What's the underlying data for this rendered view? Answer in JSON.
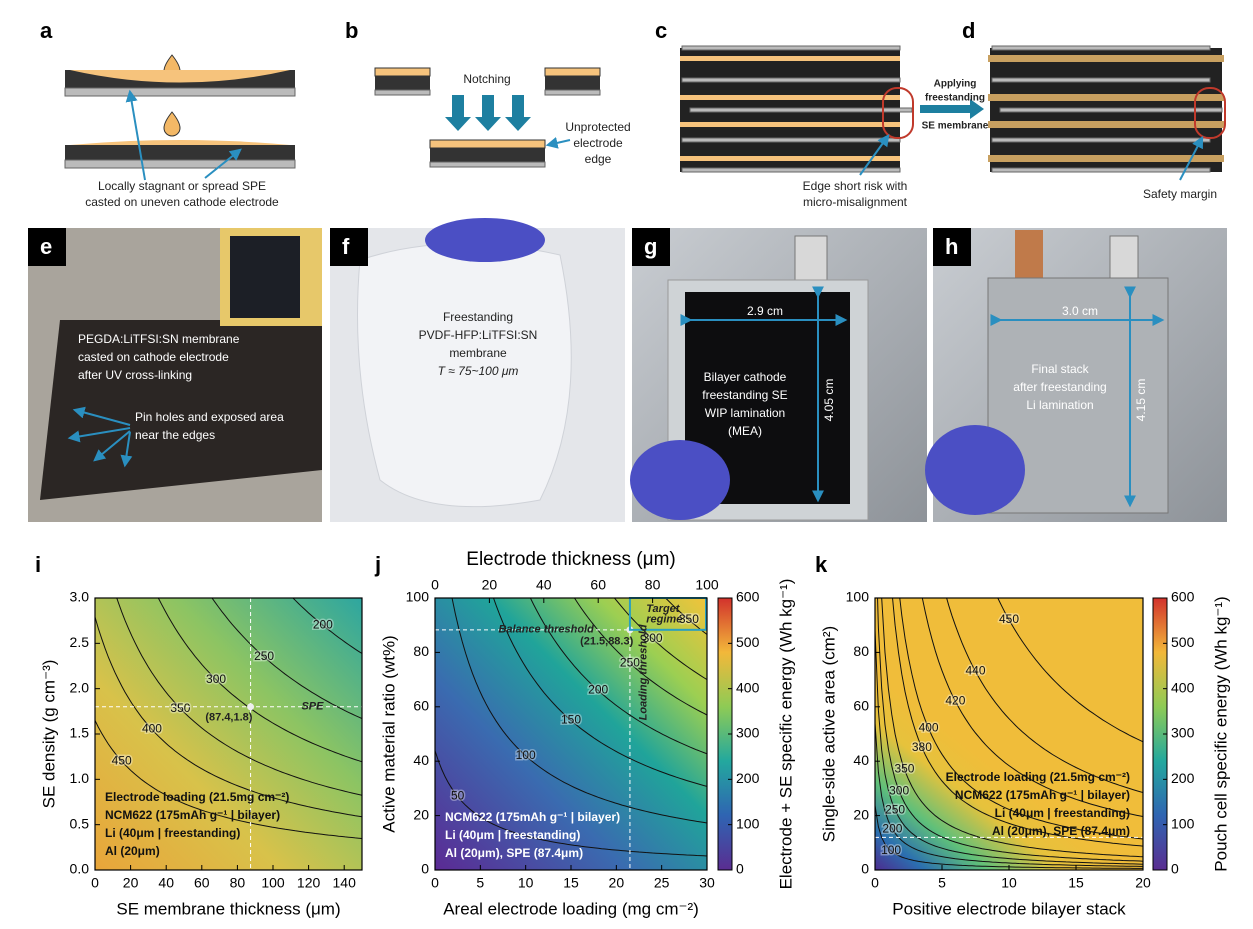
{
  "panels": [
    {
      "letter": "a",
      "notes": [
        "Locally stagnant or spread SPE",
        "casted on uneven cathode electrode"
      ]
    },
    {
      "letter": "b",
      "notes": [
        "Notching",
        "Unprotected",
        "electrode",
        "edge"
      ]
    },
    {
      "letter": "c",
      "notes": [
        "Edge short risk with",
        "micro-misalignment"
      ]
    },
    {
      "letter": "d",
      "notes": [
        "Applying",
        "freestanding",
        "SE membrane",
        "Safety margin"
      ]
    },
    {
      "letter": "e",
      "notes": [
        "PEGDA:LiTFSI:SN membrane",
        "casted on cathode electrode",
        "after UV cross-linking",
        "Pin holes and exposed area",
        "near the edges"
      ]
    },
    {
      "letter": "f",
      "notes": [
        "Freestanding",
        "PVDF-HFP:LiTFSI:SN",
        "membrane",
        "T ≈ 75~100 μm"
      ]
    },
    {
      "letter": "g",
      "notes": [
        "2.9 cm",
        "4.05 cm",
        "Bilayer cathode",
        "freestanding SE",
        "WIP lamination",
        "(MEA)"
      ]
    },
    {
      "letter": "h",
      "notes": [
        "3.0 cm",
        "4.15 cm",
        "Final stack",
        "after freestanding",
        "Li lamination"
      ]
    }
  ],
  "chart_data": [
    {
      "type": "contour",
      "letter": "i",
      "xlabel": "SE membrane thickness (μm)",
      "ylabel": "SE density (g cm⁻³)",
      "xlim": [
        0,
        150
      ],
      "xticks": [
        0,
        20,
        40,
        60,
        80,
        100,
        120,
        140
      ],
      "ylim": [
        0,
        3
      ],
      "yticks": [
        {
          "value": 0,
          "label": "0.0"
        },
        0.5,
        {
          "value": 1,
          "label": "1.0"
        },
        1.5,
        {
          "value": 2,
          "label": "2.0"
        },
        2.5,
        {
          "value": 3,
          "label": "3.0"
        }
      ],
      "levels": [
        200,
        250,
        300,
        350,
        400,
        450
      ],
      "guides": {
        "x": 87.4,
        "y": 1.8
      },
      "annotations": [
        "SPE",
        "(87.4,1.8)"
      ],
      "notes": [
        "Electrode loading (21.5mg cm⁻²)",
        "NCM622 (175mAh g⁻¹ | bilayer)",
        "Li (40μm | freestanding)",
        "Al (20μm)"
      ]
    },
    {
      "type": "contour",
      "letter": "j",
      "xlabel": "Areal electrode loading (mg cm⁻²)",
      "ylabel": "Active material ratio (wt%)",
      "x2label": "Electrode thickness (μm)",
      "x2lim": [
        0,
        100
      ],
      "x2ticks": [
        0,
        20,
        40,
        60,
        80,
        100
      ],
      "xlim": [
        0,
        30
      ],
      "xticks": [
        0,
        5,
        10,
        15,
        20,
        25,
        30
      ],
      "ylim": [
        0,
        100
      ],
      "yticks": [
        0,
        20,
        40,
        60,
        80,
        100
      ],
      "clabel": "Electrode + SE specific energy (Wh kg⁻¹)",
      "clim": [
        0,
        600
      ],
      "cticks": [
        0,
        100,
        200,
        300,
        400,
        500,
        600
      ],
      "levels": [
        50,
        100,
        150,
        200,
        250,
        300,
        350
      ],
      "guides": {
        "x": 21.5,
        "y": 88.3
      },
      "annotations": [
        "Balance threshold",
        "(21.5,88.3)",
        "Loading threshold",
        "Target",
        "regime"
      ],
      "notes": [
        "NCM622 (175mAh g⁻¹ | bilayer)",
        "Li (40μm | freestanding)",
        "Al (20μm), SPE (87.4μm)"
      ]
    },
    {
      "type": "contour",
      "letter": "k",
      "xlabel": "Positive electrode bilayer stack",
      "ylabel": "Single-side active area (cm²)",
      "xlim": [
        0,
        20
      ],
      "xticks": [
        0,
        5,
        10,
        15,
        20
      ],
      "ylim": [
        0,
        100
      ],
      "yticks": [
        0,
        20,
        40,
        60,
        80,
        100
      ],
      "clabel": "Pouch cell specific energy (Wh kg⁻¹)",
      "clim": [
        0,
        600
      ],
      "cticks": [
        0,
        100,
        200,
        300,
        400,
        500,
        600
      ],
      "levels": [
        100,
        200,
        250,
        300,
        350,
        380,
        400,
        420,
        440,
        450
      ],
      "guides": {
        "y": 12
      },
      "annotations": [],
      "notes": [
        "Electrode loading (21.5mg cm⁻²)",
        "NCM622 (175mAh g⁻¹ | bilayer)",
        "Li (40μm | freestanding)",
        "Al (20μm), SPE (87.4μm)"
      ]
    }
  ]
}
